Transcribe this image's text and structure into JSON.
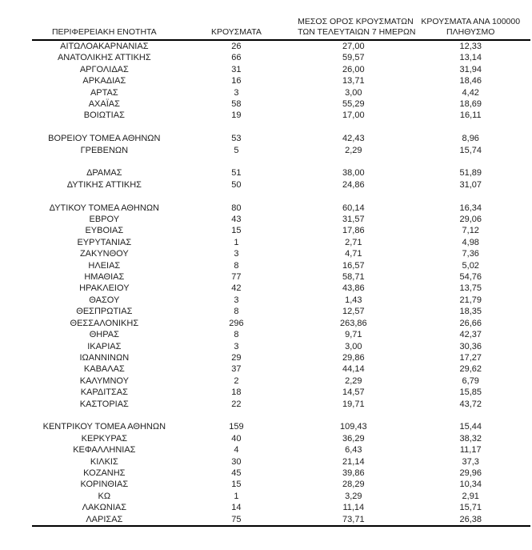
{
  "style": {
    "background": "#ffffff",
    "text_color": "#212121",
    "line_color": "#000000"
  },
  "chart_data": {
    "type": "table",
    "columns": [
      "ΠΕΡΙΦΕΡΕΙΑΚΗ ΕΝΟΤΗΤΑ",
      "ΚΡΟΥΣΜΑΤΑ",
      "ΜΕΣΟΣ ΟΡΟΣ ΚΡΟΥΣΜΑΤΩΝ ΤΩΝ ΤΕΛΕΥΤΑΙΩΝ 7 ΗΜΕΡΩΝ",
      "ΚΡΟΥΣΜΑΤΑ ΑΝΑ 100000 ΠΛΗΘΥΣΜΟ"
    ],
    "header_lines": [
      [
        "ΠΕΡΙΦΕΡΕΙΑΚΗ ΕΝΟΤΗΤΑ"
      ],
      [
        "ΚΡΟΥΣΜΑΤΑ"
      ],
      [
        "ΜΕΣΟΣ ΟΡΟΣ ΚΡΟΥΣΜΑΤΩΝ",
        "ΤΩΝ ΤΕΛΕΥΤΑΙΩΝ 7 ΗΜΕΡΩΝ"
      ],
      [
        "ΚΡΟΥΣΜΑΤΑ ΑΝΑ 100000",
        "ΠΛΗΘΥΣΜΟ"
      ]
    ],
    "groups": [
      {
        "rows": [
          [
            "ΑΙΤΩΛΟΑΚΑΡΝΑΝΙΑΣ",
            "26",
            "27,00",
            "12,33"
          ],
          [
            "ΑΝΑΤΟΛΙΚΗΣ ΑΤΤΙΚΗΣ",
            "66",
            "59,57",
            "13,14"
          ],
          [
            "ΑΡΓΟΛΙΔΑΣ",
            "31",
            "26,00",
            "31,94"
          ],
          [
            "ΑΡΚΑΔΙΑΣ",
            "16",
            "13,71",
            "18,46"
          ],
          [
            "ΑΡΤΑΣ",
            "3",
            "3,00",
            "4,42"
          ],
          [
            "ΑΧΑΪΑΣ",
            "58",
            "55,29",
            "18,69"
          ],
          [
            "ΒΟΙΩΤΙΑΣ",
            "19",
            "17,00",
            "16,11"
          ]
        ]
      },
      {
        "rows": [
          [
            "ΒΟΡΕΙΟΥ ΤΟΜΕΑ ΑΘΗΝΩΝ",
            "53",
            "42,43",
            "8,96"
          ],
          [
            "ΓΡΕΒΕΝΩΝ",
            "5",
            "2,29",
            "15,74"
          ]
        ]
      },
      {
        "rows": [
          [
            "ΔΡΑΜΑΣ",
            "51",
            "38,00",
            "51,89"
          ],
          [
            "ΔΥΤΙΚΗΣ ΑΤΤΙΚΗΣ",
            "50",
            "24,86",
            "31,07"
          ]
        ]
      },
      {
        "rows": [
          [
            "ΔΥΤΙΚΟΥ ΤΟΜΕΑ ΑΘΗΝΩΝ",
            "80",
            "60,14",
            "16,34"
          ],
          [
            "ΕΒΡΟΥ",
            "43",
            "31,57",
            "29,06"
          ],
          [
            "ΕΥΒΟΙΑΣ",
            "15",
            "17,86",
            "7,12"
          ],
          [
            "ΕΥΡΥΤΑΝΙΑΣ",
            "1",
            "2,71",
            "4,98"
          ],
          [
            "ΖΑΚΥΝΘΟΥ",
            "3",
            "4,71",
            "7,36"
          ],
          [
            "ΗΛΕΙΑΣ",
            "8",
            "16,57",
            "5,02"
          ],
          [
            "ΗΜΑΘΙΑΣ",
            "77",
            "58,71",
            "54,76"
          ],
          [
            "ΗΡΑΚΛΕΙΟΥ",
            "42",
            "43,86",
            "13,75"
          ],
          [
            "ΘΑΣΟΥ",
            "3",
            "1,43",
            "21,79"
          ],
          [
            "ΘΕΣΠΡΩΤΙΑΣ",
            "8",
            "12,57",
            "18,35"
          ],
          [
            "ΘΕΣΣΑΛΟΝΙΚΗΣ",
            "296",
            "263,86",
            "26,66"
          ],
          [
            "ΘΗΡΑΣ",
            "8",
            "9,71",
            "42,37"
          ],
          [
            "ΙΚΑΡΙΑΣ",
            "3",
            "3,00",
            "30,36"
          ],
          [
            "ΙΩΑΝΝΙΝΩΝ",
            "29",
            "29,86",
            "17,27"
          ],
          [
            "ΚΑΒΑΛΑΣ",
            "37",
            "44,14",
            "29,62"
          ],
          [
            "ΚΑΛΥΜΝΟΥ",
            "2",
            "2,29",
            "6,79"
          ],
          [
            "ΚΑΡΔΙΤΣΑΣ",
            "18",
            "14,57",
            "15,85"
          ],
          [
            "ΚΑΣΤΟΡΙΑΣ",
            "22",
            "19,71",
            "43,72"
          ]
        ]
      },
      {
        "rows": [
          [
            "ΚΕΝΤΡΙΚΟΥ ΤΟΜΕΑ ΑΘΗΝΩΝ",
            "159",
            "109,43",
            "15,44"
          ],
          [
            "ΚΕΡΚΥΡΑΣ",
            "40",
            "36,29",
            "38,32"
          ],
          [
            "ΚΕΦΑΛΛΗΝΙΑΣ",
            "4",
            "6,43",
            "11,17"
          ],
          [
            "ΚΙΛΚΙΣ",
            "30",
            "21,14",
            "37,3"
          ],
          [
            "ΚΟΖΑΝΗΣ",
            "45",
            "39,86",
            "29,96"
          ],
          [
            "ΚΟΡΙΝΘΙΑΣ",
            "15",
            "28,29",
            "10,34"
          ],
          [
            "ΚΩ",
            "1",
            "3,29",
            "2,91"
          ],
          [
            "ΛΑΚΩΝΙΑΣ",
            "14",
            "11,14",
            "15,71"
          ],
          [
            "ΛΑΡΙΣΑΣ",
            "75",
            "73,71",
            "26,38"
          ]
        ]
      }
    ]
  }
}
